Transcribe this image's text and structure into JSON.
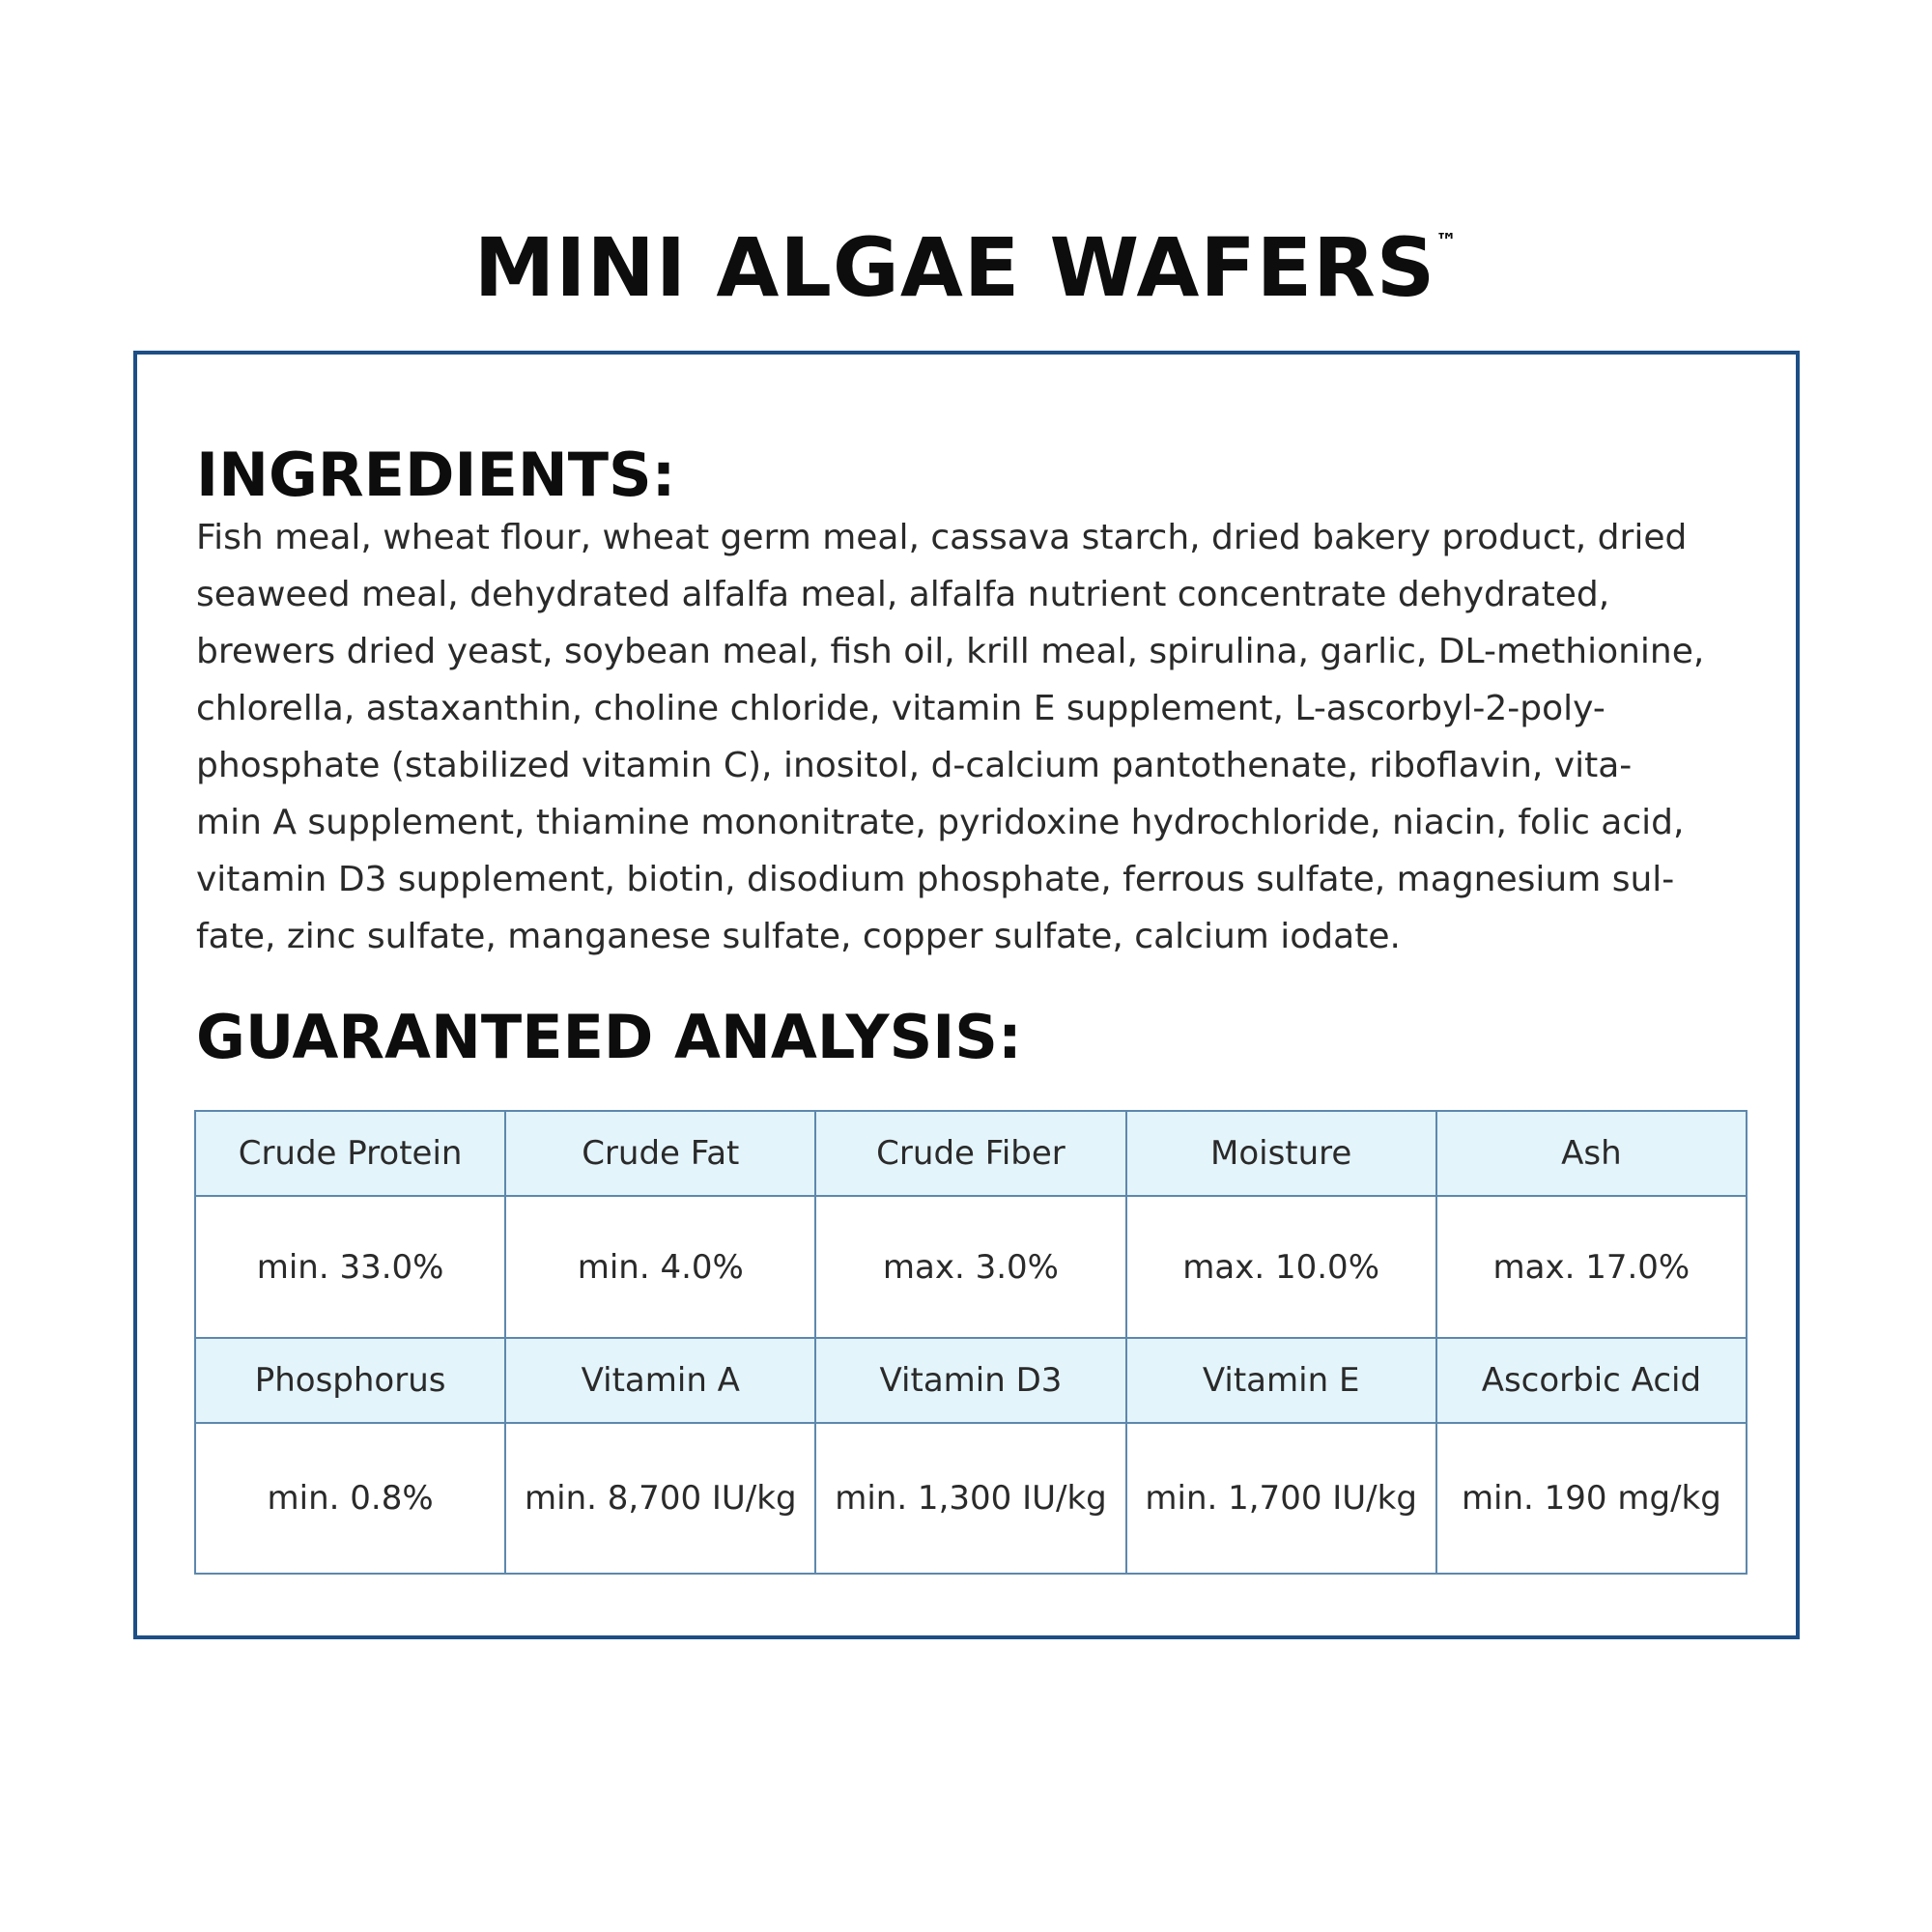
{
  "title": "MINI ALGAE WAFERS",
  "trademark": "™",
  "ingredients": {
    "heading": "INGREDIENTS:",
    "lines": [
      "Fish meal, wheat flour, wheat germ meal, cassava starch, dried bakery product, dried",
      "seaweed meal, dehydrated alfalfa meal, alfalfa nutrient concentrate dehydrated,",
      "brewers dried yeast, soybean meal, fish oil, krill meal, spirulina, garlic, DL-methionine,",
      "chlorella, astaxanthin, choline chloride, vitamin E supplement, L-ascorbyl-2-poly-",
      "phosphate (stabilized vitamin C), inositol, d-calcium pantothenate, riboflavin, vita-",
      "min A supplement, thiamine mononitrate, pyridoxine hydrochloride, niacin, folic acid,",
      "vitamin D3 supplement, biotin, disodium phosphate, ferrous sulfate, magnesium sul-",
      "fate, zinc sulfate, manganese sulfate, copper sulfate, calcium iodate."
    ]
  },
  "analysis": {
    "heading": "GUARANTEED ANALYSIS:",
    "rows": [
      {
        "labels": [
          "Crude Protein",
          "Crude Fat",
          "Crude Fiber",
          "Moisture",
          "Ash"
        ],
        "values": [
          "min. 33.0%",
          "min. 4.0%",
          "max. 3.0%",
          "max. 10.0%",
          "max. 17.0%"
        ]
      },
      {
        "labels": [
          "Phosphorus",
          "Vitamin A",
          "Vitamin D3",
          "Vitamin E",
          "Ascorbic Acid"
        ],
        "values": [
          "min. 0.8%",
          "min. 8,700 IU/kg",
          "min. 1,300 IU/kg",
          "min. 1,700 IU/kg",
          "min. 190 mg/kg"
        ]
      }
    ]
  },
  "colors": {
    "border": "#1d4f86",
    "header_bg": "#e4f4fb",
    "grid": "#5d88ad"
  }
}
